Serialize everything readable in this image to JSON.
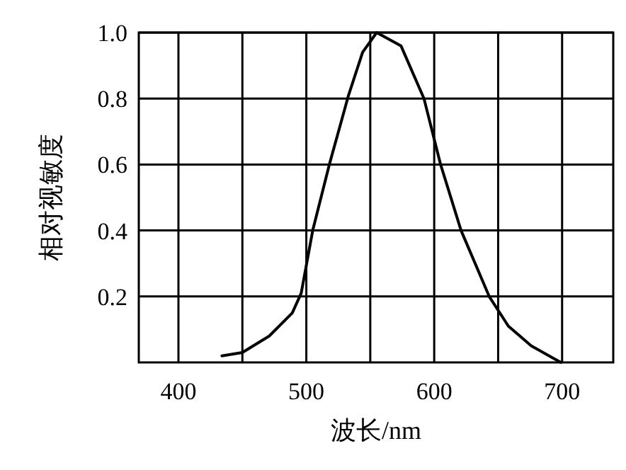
{
  "chart_data": {
    "type": "line",
    "xlabel": "波长/nm",
    "ylabel": "相对视敏度",
    "x": [
      434,
      450,
      471,
      489,
      496,
      505,
      518,
      528,
      533,
      544,
      555,
      574,
      592,
      605,
      621,
      643,
      658,
      676,
      699
    ],
    "series": [
      {
        "color": "#000000",
        "values": [
          0.02,
          0.03,
          0.08,
          0.15,
          0.21,
          0.4,
          0.6,
          0.74,
          0.81,
          0.94,
          1.0,
          0.96,
          0.8,
          0.6,
          0.4,
          0.2,
          0.11,
          0.05,
          0.0
        ]
      }
    ],
    "xlim": [
      369,
      740
    ],
    "ylim": [
      0,
      1.0
    ],
    "xticks": [
      400,
      {
        "value": 450,
        "label": null
      },
      500,
      {
        "value": 550,
        "label": null
      },
      600,
      {
        "value": 650,
        "label": null
      },
      700
    ],
    "yticks": [
      0.2,
      0.4,
      0.6,
      0.8,
      {
        "value": 1.0,
        "label": "1.0"
      }
    ],
    "grid": true
  }
}
